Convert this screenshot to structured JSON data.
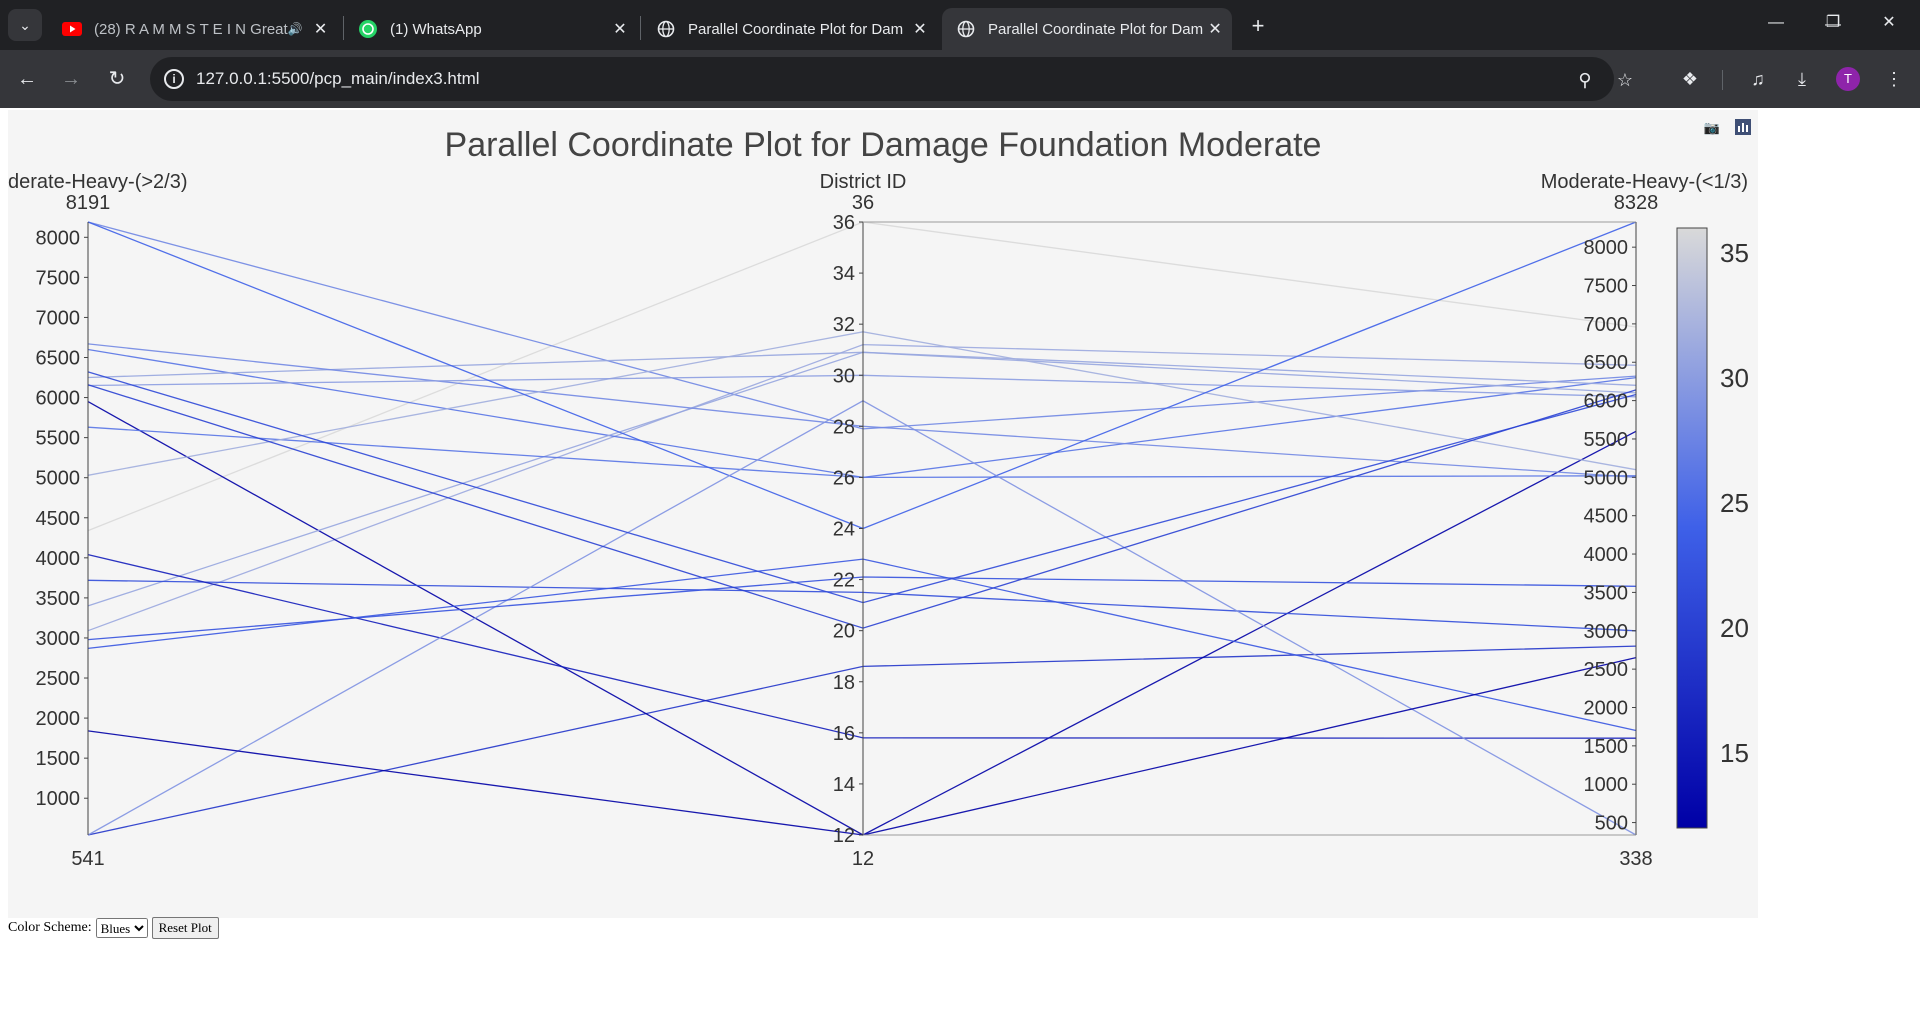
{
  "browser": {
    "tabs": [
      {
        "title": "(28) R A M M S T E I N Great",
        "icon": "youtube-icon",
        "audio": true
      },
      {
        "title": "(1) WhatsApp",
        "icon": "whatsapp-icon"
      },
      {
        "title": "Parallel Coordinate Plot for Dam",
        "icon": "globe-icon"
      },
      {
        "title": "Parallel Coordinate Plot for Dam",
        "icon": "globe-icon",
        "active": true
      }
    ],
    "url": "127.0.0.1:5500/pcp_main/index3.html",
    "avatar_letter": "T"
  },
  "controls": {
    "color_scheme_label": "Color Scheme:",
    "color_scheme_value": "Blues",
    "color_scheme_options": [
      "Blues"
    ],
    "reset_label": "Reset Plot"
  },
  "chart_data": {
    "type": "parallel_coordinates",
    "title": "Parallel Coordinate Plot for Damage Foundation Moderate",
    "colorscale": {
      "name": "Blues",
      "min": 12,
      "max": 36,
      "low_color": "#0000a6",
      "high_color": "#d9d9d9",
      "ticks": [
        15,
        20,
        25,
        30,
        35
      ]
    },
    "dimensions": [
      {
        "label": "derate-Heavy-(>2/3)",
        "range": [
          541,
          8191
        ],
        "range_labels": [
          "541",
          "8191"
        ],
        "ticks": [
          1000,
          1500,
          2000,
          2500,
          3000,
          3500,
          4000,
          4500,
          5000,
          5500,
          6000,
          6500,
          7000,
          7500,
          8000
        ]
      },
      {
        "label": "District ID",
        "range": [
          12,
          36
        ],
        "range_labels": [
          "12",
          "36"
        ],
        "ticks": [
          12,
          14,
          16,
          18,
          20,
          22,
          24,
          26,
          28,
          30,
          32,
          34,
          36
        ]
      },
      {
        "label": "Moderate-Heavy-(<1/3)",
        "range": [
          338,
          8328
        ],
        "range_labels": [
          "338",
          "8328"
        ],
        "ticks": [
          500,
          1000,
          1500,
          2000,
          2500,
          3000,
          3500,
          4000,
          4500,
          5000,
          5500,
          6000,
          6500,
          7000,
          7500,
          8000
        ]
      }
    ],
    "lines": [
      [
        541,
        18.6,
        2800
      ],
      [
        4340,
        36,
        6960
      ],
      [
        3090,
        31.2,
        6460
      ],
      [
        6600,
        26,
        6300
      ],
      [
        8191,
        27.9,
        6320
      ],
      [
        6250,
        30.9,
        6200
      ],
      [
        5950,
        12,
        5600
      ],
      [
        3400,
        30.9,
        6100
      ],
      [
        5630,
        26,
        5020
      ],
      [
        3720,
        21.5,
        3000
      ],
      [
        4040,
        15.8,
        1600
      ],
      [
        6670,
        28,
        5000
      ],
      [
        5030,
        31.7,
        5100
      ],
      [
        6150,
        30,
        6050
      ],
      [
        8191,
        24,
        8328
      ],
      [
        541,
        29,
        338
      ],
      [
        2870,
        22.8,
        1700
      ],
      [
        2980,
        22.1,
        3580
      ],
      [
        6320,
        21.1,
        6080
      ],
      [
        6160,
        20.1,
        6140
      ],
      [
        1840,
        12,
        2650
      ]
    ]
  }
}
